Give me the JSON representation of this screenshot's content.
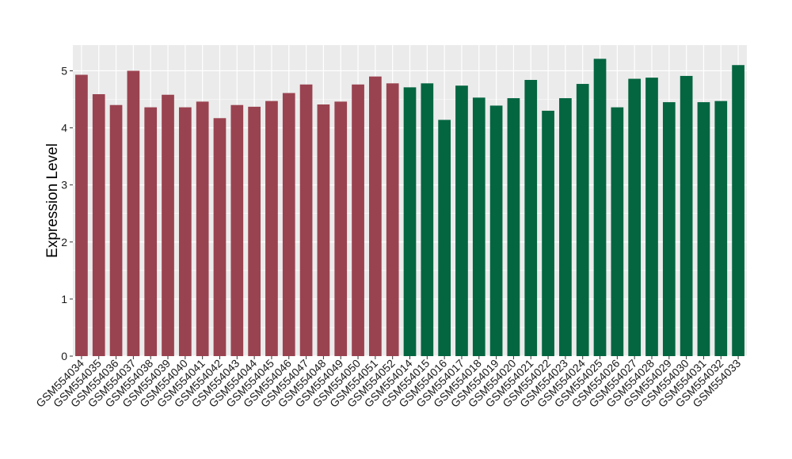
{
  "chart_data": {
    "type": "bar",
    "xlabel": "",
    "ylabel": "Expression Level",
    "ylim": [
      0,
      5.45
    ],
    "yticks": [
      0,
      1,
      2,
      3,
      4,
      5
    ],
    "grid": true,
    "legend": "none",
    "panel_background": "#ebebeb",
    "grid_color": "#ffffff",
    "categories": [
      "GSM554034",
      "GSM554035",
      "GSM554036",
      "GSM554037",
      "GSM554038",
      "GSM554039",
      "GSM554040",
      "GSM554041",
      "GSM554042",
      "GSM554043",
      "GSM554044",
      "GSM554045",
      "GSM554046",
      "GSM554047",
      "GSM554048",
      "GSM554049",
      "GSM554050",
      "GSM554051",
      "GSM554052",
      "GSM554014",
      "GSM554015",
      "GSM554016",
      "GSM554017",
      "GSM554018",
      "GSM554019",
      "GSM554020",
      "GSM554021",
      "GSM554022",
      "GSM554023",
      "GSM554024",
      "GSM554025",
      "GSM554026",
      "GSM554027",
      "GSM554028",
      "GSM554029",
      "GSM554030",
      "GSM554031",
      "GSM554032",
      "GSM554033"
    ],
    "values": [
      4.93,
      4.59,
      4.4,
      5.0,
      4.36,
      4.58,
      4.36,
      4.46,
      4.17,
      4.4,
      4.37,
      4.47,
      4.61,
      4.76,
      4.41,
      4.46,
      4.76,
      4.9,
      4.78,
      4.71,
      4.78,
      4.14,
      4.74,
      4.53,
      4.39,
      4.52,
      4.84,
      4.3,
      4.52,
      4.77,
      5.21,
      4.36,
      4.86,
      4.88,
      4.45,
      4.91,
      4.45,
      4.47,
      5.1
    ],
    "groups": [
      "A",
      "A",
      "A",
      "A",
      "A",
      "A",
      "A",
      "A",
      "A",
      "A",
      "A",
      "A",
      "A",
      "A",
      "A",
      "A",
      "A",
      "A",
      "A",
      "B",
      "B",
      "B",
      "B",
      "B",
      "B",
      "B",
      "B",
      "B",
      "B",
      "B",
      "B",
      "B",
      "B",
      "B",
      "B",
      "B",
      "B",
      "B",
      "B"
    ],
    "group_colors": {
      "A": "#9a4350",
      "B": "#046641"
    }
  }
}
